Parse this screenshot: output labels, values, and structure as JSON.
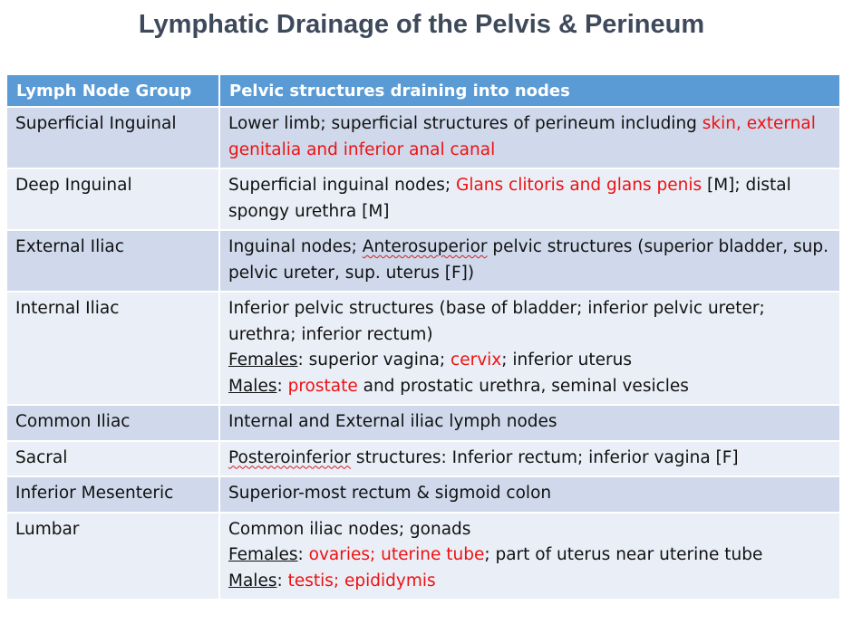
{
  "title": "Lymphatic Drainage of the Pelvis & Perineum",
  "headers": [
    "Lymph Node Group",
    "Pelvic structures draining into nodes"
  ],
  "rows": [
    {
      "group": "Superficial Inguinal",
      "a": "Lower limb; superficial structures of perineum including ",
      "b": "skin, external genitalia and inferior anal canal"
    },
    {
      "group": "Deep Inguinal",
      "a": "Superficial inguinal nodes; ",
      "b": "Glans clitoris and glans penis",
      "c": " [M]; distal spongy urethra [M]"
    },
    {
      "group": "External Iliac",
      "a": "Inguinal nodes; ",
      "b": "Anterosuperior",
      "c": " pelvic structures (superior bladder, sup. pelvic ureter, sup. uterus [F])"
    },
    {
      "group": "Internal Iliac",
      "line1": "Inferior pelvic structures (base of bladder; inferior pelvic ureter; urethra; inferior rectum)",
      "f_label": "Females",
      "f_a": ": superior vagina; ",
      "f_b": "cervix",
      "f_c": "; inferior uterus",
      "m_label": "Males",
      "m_a": ": ",
      "m_b": "prostate",
      "m_c": " and prostatic urethra, seminal vesicles"
    },
    {
      "group": "Common Iliac",
      "a": "Internal and External iliac lymph nodes"
    },
    {
      "group": "Sacral",
      "a": "Posteroinferior",
      "b": " structures: Inferior rectum; inferior vagina [F]"
    },
    {
      "group": "Inferior Mesenteric",
      "a": "Superior-most rectum & sigmoid colon"
    },
    {
      "group": "Lumbar",
      "line1": "Common iliac nodes; gonads",
      "f_label": "Females",
      "f_a": ": ",
      "f_b": "ovaries; uterine tube",
      "f_c": "; part of uterus near uterine tube",
      "m_label": "Males",
      "m_a": ": ",
      "m_b": "testis; epididymis"
    }
  ],
  "colors": {
    "header_bg": "#5b9bd5",
    "row_odd": "#cfd9eb",
    "row_even": "#e9eef7",
    "highlight": "#ee1111",
    "title": "#3e4a5c"
  }
}
